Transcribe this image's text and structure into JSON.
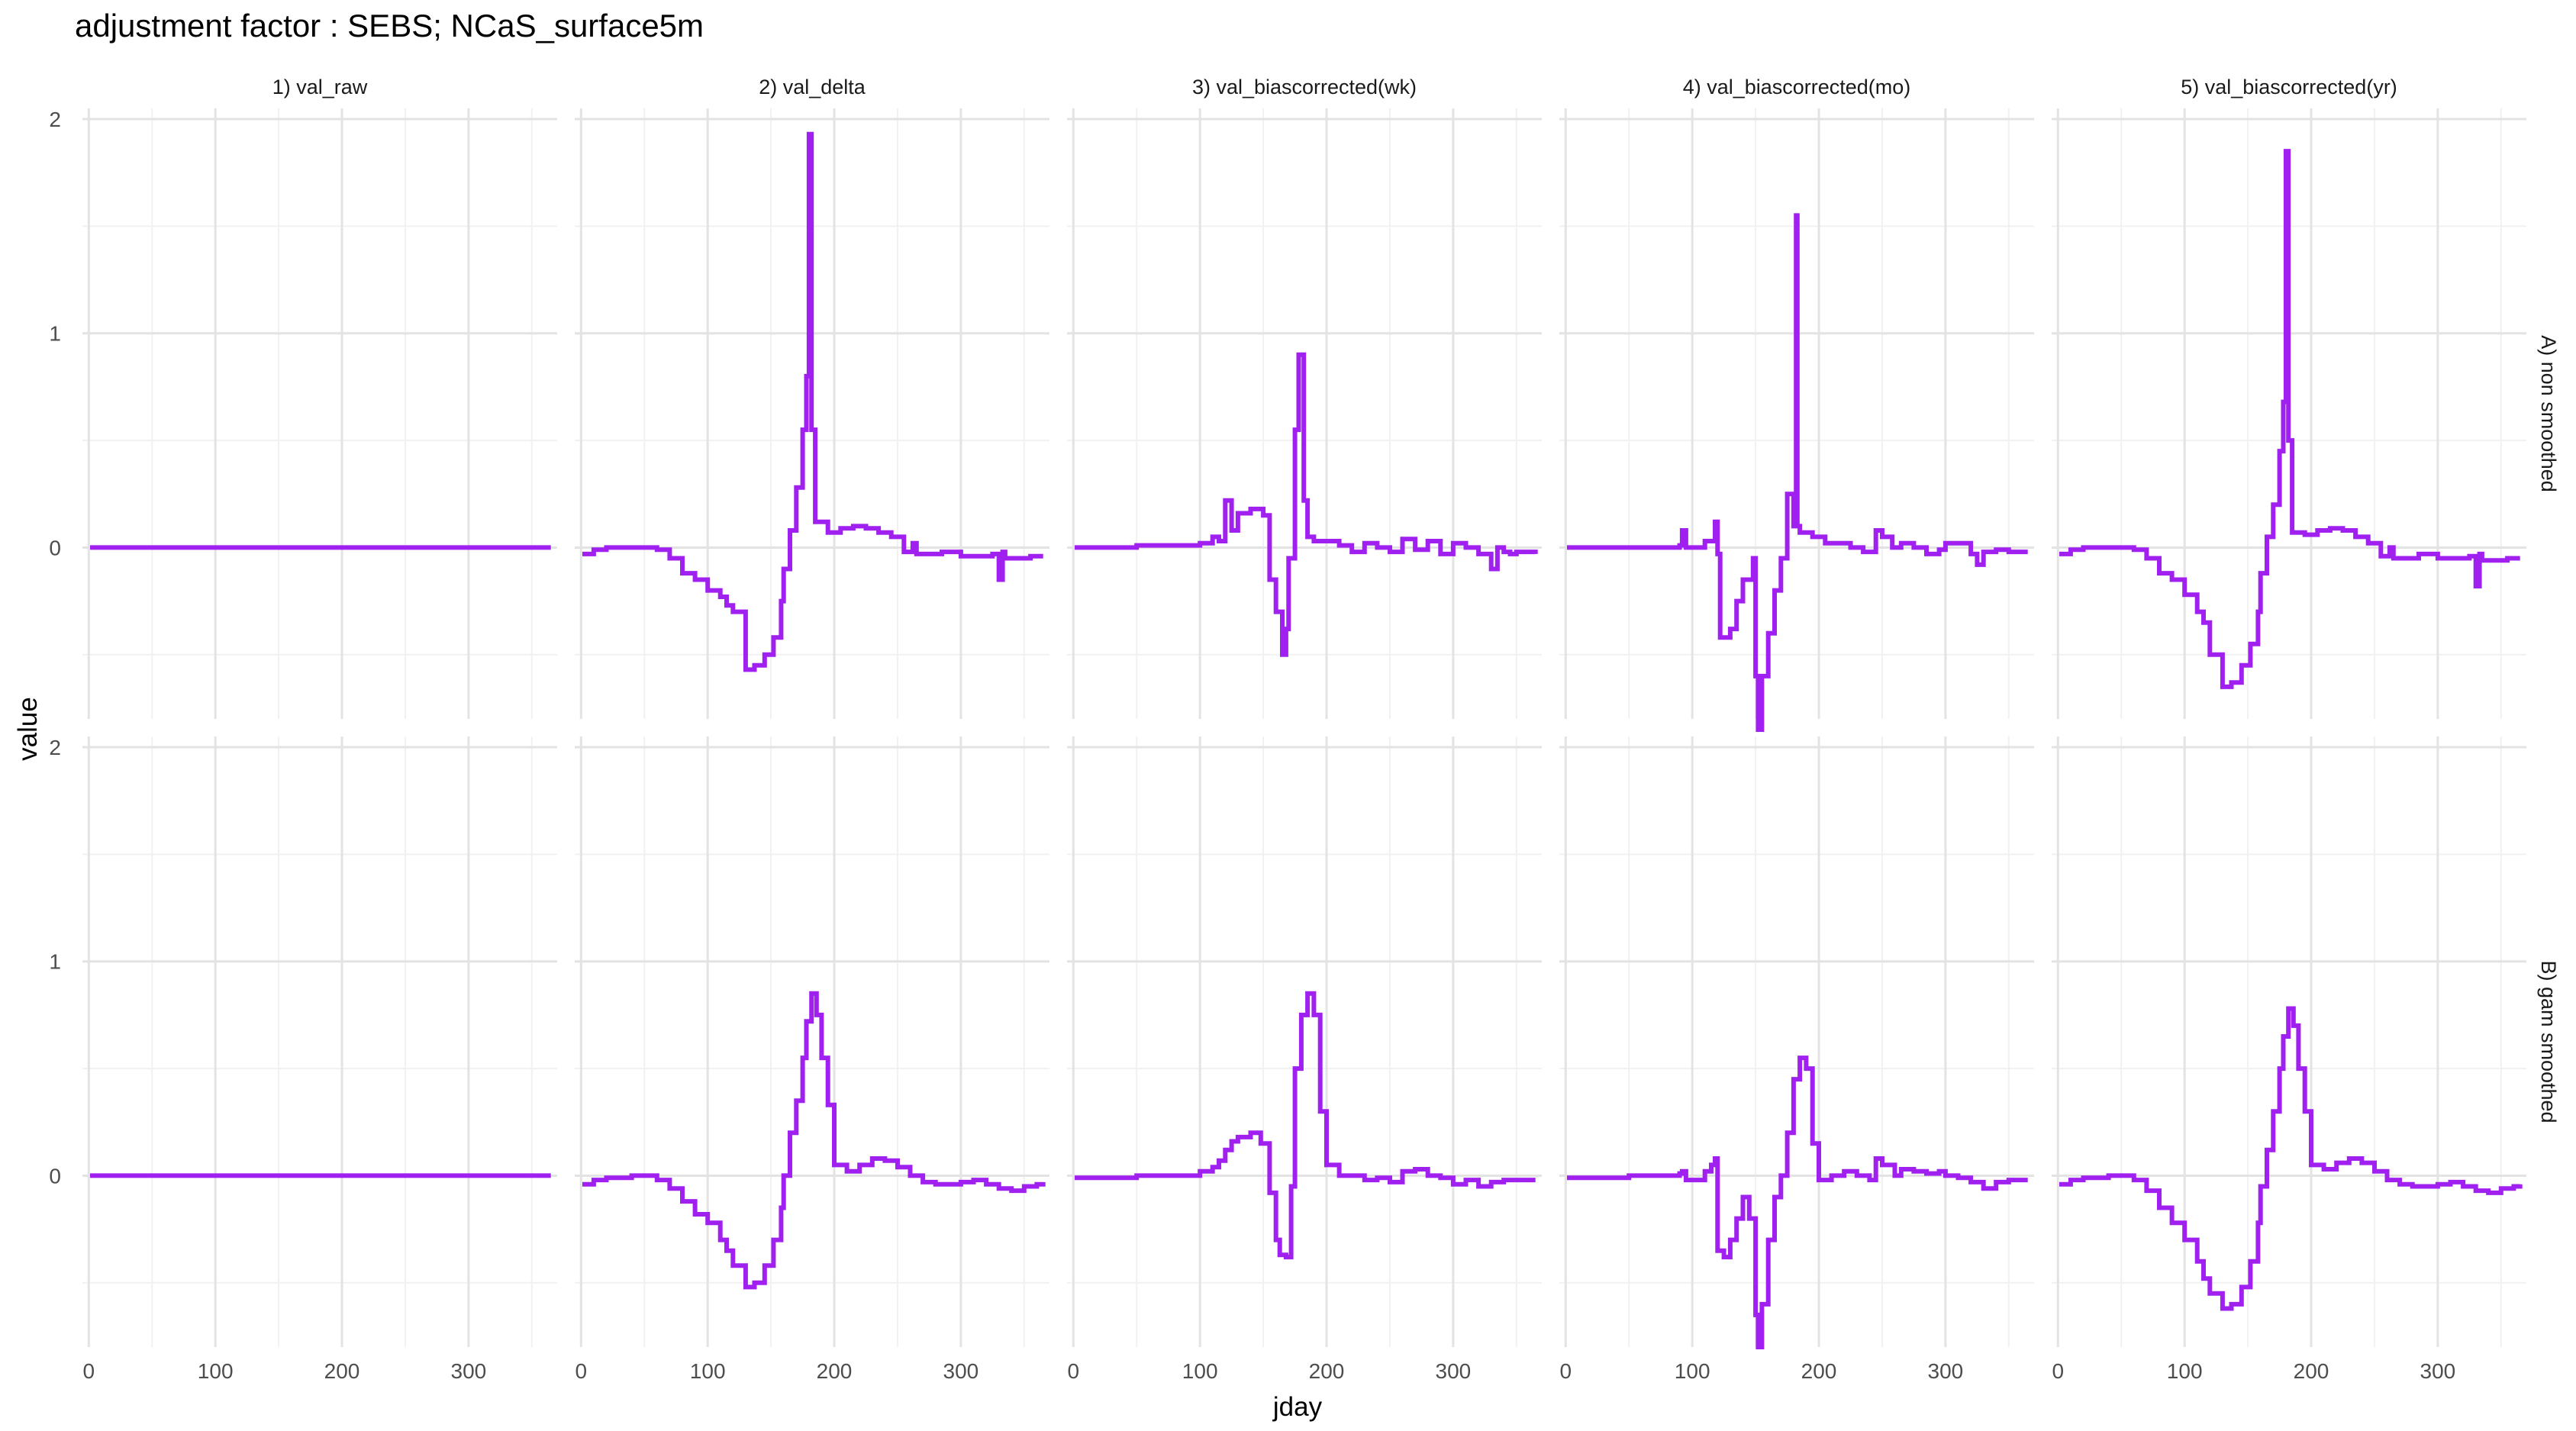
{
  "chart_data": {
    "type": "line",
    "title": "adjustment factor : SEBS; NCaS_surface5m",
    "xlabel": "jday",
    "ylabel": "value",
    "xlim": [
      -5,
      370
    ],
    "ylim": [
      -0.8,
      2.05
    ],
    "x_ticks": [
      0,
      100,
      200,
      300
    ],
    "y_ticks": [
      0,
      1,
      2
    ],
    "grid": true,
    "line_color": "#A020F0",
    "columns": [
      "1) val_raw",
      "2) val_delta",
      "3) val_biascorrected(wk)",
      "4) val_biascorrected(mo)",
      "5) val_biascorrected(yr)"
    ],
    "rows": [
      "A) non smoothed",
      "B) gam smoothed"
    ],
    "series": [
      {
        "row": 0,
        "col": 0,
        "x": [
          1,
          50,
          100,
          150,
          200,
          250,
          300,
          365
        ],
        "y": [
          0,
          0,
          0,
          0,
          0,
          0,
          0,
          0
        ]
      },
      {
        "row": 0,
        "col": 1,
        "x": [
          1,
          10,
          20,
          40,
          60,
          70,
          80,
          90,
          100,
          110,
          115,
          120,
          130,
          137,
          145,
          152,
          158,
          160,
          165,
          170,
          175,
          178,
          180,
          182,
          185,
          195,
          205,
          215,
          225,
          235,
          245,
          255,
          262,
          265,
          275,
          285,
          300,
          325,
          330,
          333,
          335,
          345,
          355,
          365
        ],
        "y": [
          -0.03,
          -0.01,
          0,
          0,
          -0.01,
          -0.05,
          -0.12,
          -0.15,
          -0.2,
          -0.23,
          -0.27,
          -0.3,
          -0.57,
          -0.55,
          -0.5,
          -0.42,
          -0.25,
          -0.1,
          0.08,
          0.28,
          0.55,
          0.8,
          1.93,
          0.55,
          0.12,
          0.07,
          0.09,
          0.1,
          0.09,
          0.07,
          0.05,
          -0.02,
          0.02,
          -0.03,
          -0.03,
          -0.02,
          -0.04,
          -0.03,
          -0.15,
          -0.02,
          -0.05,
          -0.05,
          -0.04,
          -0.04
        ],
        "label": "2) val_delta"
      },
      {
        "row": 0,
        "col": 2,
        "x": [
          1,
          50,
          100,
          110,
          115,
          120,
          125,
          130,
          140,
          150,
          155,
          160,
          165,
          168,
          170,
          175,
          178,
          182,
          185,
          190,
          200,
          210,
          220,
          230,
          240,
          250,
          260,
          270,
          280,
          290,
          300,
          310,
          320,
          330,
          335,
          340,
          345,
          350,
          360,
          365
        ],
        "y": [
          0,
          0.01,
          0.02,
          0.05,
          0.03,
          0.22,
          0.08,
          0.16,
          0.18,
          0.15,
          -0.15,
          -0.3,
          -0.5,
          -0.38,
          -0.05,
          0.55,
          0.9,
          0.22,
          0.05,
          0.03,
          0.03,
          0.01,
          -0.02,
          0.02,
          0.0,
          -0.02,
          0.04,
          -0.01,
          0.03,
          -0.03,
          0.02,
          0.0,
          -0.03,
          -0.1,
          0.0,
          -0.02,
          -0.03,
          -0.02,
          -0.02,
          -0.03
        ]
      },
      {
        "row": 0,
        "col": 3,
        "x": [
          1,
          50,
          90,
          92,
          95,
          110,
          118,
          120,
          122,
          125,
          130,
          135,
          140,
          148,
          150,
          152,
          155,
          160,
          165,
          170,
          175,
          180,
          182,
          183,
          185,
          195,
          205,
          215,
          225,
          235,
          245,
          250,
          258,
          265,
          275,
          285,
          295,
          300,
          320,
          325,
          330,
          340,
          350,
          360,
          365
        ],
        "y": [
          0,
          0,
          0.01,
          0.08,
          0,
          0.03,
          0.12,
          -0.03,
          -0.42,
          -0.42,
          -0.38,
          -0.25,
          -0.15,
          -0.05,
          -0.6,
          -0.85,
          -0.6,
          -0.4,
          -0.2,
          -0.05,
          0.25,
          0.1,
          1.55,
          0.1,
          0.07,
          0.05,
          0.02,
          0.02,
          0.0,
          -0.02,
          0.08,
          0.05,
          0.0,
          0.02,
          0.0,
          -0.03,
          -0.01,
          0.02,
          -0.03,
          -0.08,
          -0.02,
          -0.01,
          -0.02,
          -0.02,
          -0.02
        ]
      },
      {
        "row": 0,
        "col": 4,
        "x": [
          1,
          10,
          20,
          40,
          60,
          70,
          80,
          90,
          100,
          110,
          115,
          120,
          130,
          137,
          145,
          152,
          158,
          160,
          165,
          170,
          175,
          178,
          180,
          182,
          185,
          195,
          205,
          215,
          225,
          235,
          245,
          255,
          262,
          265,
          275,
          285,
          300,
          325,
          330,
          333,
          335,
          345,
          355,
          365
        ],
        "y": [
          -0.03,
          -0.01,
          0,
          0,
          -0.01,
          -0.05,
          -0.12,
          -0.15,
          -0.22,
          -0.3,
          -0.35,
          -0.5,
          -0.65,
          -0.63,
          -0.55,
          -0.45,
          -0.3,
          -0.12,
          0.05,
          0.2,
          0.45,
          0.68,
          1.85,
          0.5,
          0.07,
          0.06,
          0.08,
          0.09,
          0.08,
          0.05,
          0.02,
          -0.04,
          0.0,
          -0.05,
          -0.05,
          -0.03,
          -0.05,
          -0.04,
          -0.18,
          -0.03,
          -0.06,
          -0.06,
          -0.05,
          -0.05
        ]
      },
      {
        "row": 1,
        "col": 0,
        "x": [
          1,
          50,
          100,
          150,
          200,
          250,
          300,
          365
        ],
        "y": [
          0,
          0,
          0,
          0,
          0,
          0,
          0,
          0
        ]
      },
      {
        "row": 1,
        "col": 1,
        "x": [
          1,
          10,
          20,
          40,
          60,
          70,
          80,
          90,
          100,
          110,
          115,
          120,
          130,
          137,
          145,
          152,
          158,
          160,
          165,
          170,
          175,
          178,
          182,
          186,
          190,
          195,
          200,
          210,
          220,
          230,
          240,
          250,
          260,
          270,
          280,
          290,
          300,
          310,
          320,
          330,
          340,
          350,
          360,
          365
        ],
        "y": [
          -0.04,
          -0.02,
          -0.01,
          0,
          -0.02,
          -0.06,
          -0.12,
          -0.18,
          -0.22,
          -0.3,
          -0.35,
          -0.42,
          -0.52,
          -0.5,
          -0.42,
          -0.3,
          -0.15,
          0.0,
          0.2,
          0.35,
          0.55,
          0.72,
          0.85,
          0.75,
          0.55,
          0.33,
          0.05,
          0.02,
          0.05,
          0.08,
          0.07,
          0.04,
          0.0,
          -0.03,
          -0.04,
          -0.04,
          -0.03,
          -0.02,
          -0.04,
          -0.06,
          -0.07,
          -0.05,
          -0.04,
          -0.03
        ]
      },
      {
        "row": 1,
        "col": 2,
        "x": [
          1,
          50,
          100,
          110,
          115,
          120,
          125,
          130,
          140,
          148,
          155,
          160,
          163,
          168,
          172,
          175,
          180,
          185,
          190,
          195,
          200,
          210,
          220,
          230,
          240,
          250,
          260,
          270,
          280,
          290,
          300,
          310,
          320,
          330,
          340,
          350,
          360,
          365
        ],
        "y": [
          -0.01,
          0,
          0.02,
          0.04,
          0.07,
          0.12,
          0.16,
          0.18,
          0.2,
          0.15,
          -0.08,
          -0.3,
          -0.37,
          -0.38,
          -0.05,
          0.5,
          0.75,
          0.85,
          0.75,
          0.3,
          0.05,
          0.0,
          0.0,
          -0.02,
          -0.01,
          -0.03,
          0.02,
          0.03,
          0.0,
          -0.01,
          -0.04,
          -0.02,
          -0.05,
          -0.03,
          -0.02,
          -0.02,
          -0.02,
          -0.02
        ]
      },
      {
        "row": 1,
        "col": 3,
        "x": [
          1,
          50,
          90,
          92,
          95,
          110,
          115,
          118,
          120,
          125,
          130,
          135,
          140,
          145,
          150,
          152,
          155,
          160,
          165,
          170,
          175,
          180,
          185,
          190,
          195,
          200,
          210,
          220,
          230,
          240,
          245,
          250,
          260,
          265,
          275,
          285,
          295,
          300,
          310,
          320,
          330,
          340,
          350,
          360,
          365
        ],
        "y": [
          -0.01,
          0,
          0.01,
          0.02,
          -0.02,
          0.02,
          0.05,
          0.08,
          -0.35,
          -0.38,
          -0.3,
          -0.2,
          -0.1,
          -0.2,
          -0.65,
          -0.8,
          -0.6,
          -0.3,
          -0.1,
          0.0,
          0.2,
          0.45,
          0.55,
          0.5,
          0.15,
          -0.02,
          0.0,
          0.02,
          0.0,
          -0.02,
          0.08,
          0.05,
          0.0,
          0.03,
          0.02,
          0.01,
          0.02,
          0.0,
          -0.01,
          -0.03,
          -0.06,
          -0.03,
          -0.02,
          -0.02,
          -0.02
        ]
      },
      {
        "row": 1,
        "col": 4,
        "x": [
          1,
          10,
          20,
          40,
          60,
          70,
          80,
          90,
          100,
          110,
          115,
          120,
          130,
          137,
          145,
          152,
          158,
          160,
          165,
          170,
          175,
          178,
          182,
          186,
          190,
          195,
          200,
          210,
          220,
          230,
          240,
          250,
          260,
          270,
          280,
          290,
          300,
          310,
          320,
          330,
          340,
          350,
          360,
          365
        ],
        "y": [
          -0.04,
          -0.02,
          -0.01,
          0,
          -0.02,
          -0.07,
          -0.15,
          -0.22,
          -0.3,
          -0.4,
          -0.48,
          -0.55,
          -0.62,
          -0.6,
          -0.52,
          -0.4,
          -0.22,
          -0.05,
          0.12,
          0.3,
          0.5,
          0.65,
          0.78,
          0.7,
          0.5,
          0.3,
          0.05,
          0.03,
          0.06,
          0.08,
          0.06,
          0.02,
          -0.02,
          -0.04,
          -0.05,
          -0.05,
          -0.04,
          -0.03,
          -0.05,
          -0.07,
          -0.08,
          -0.06,
          -0.05,
          -0.04
        ]
      }
    ]
  }
}
